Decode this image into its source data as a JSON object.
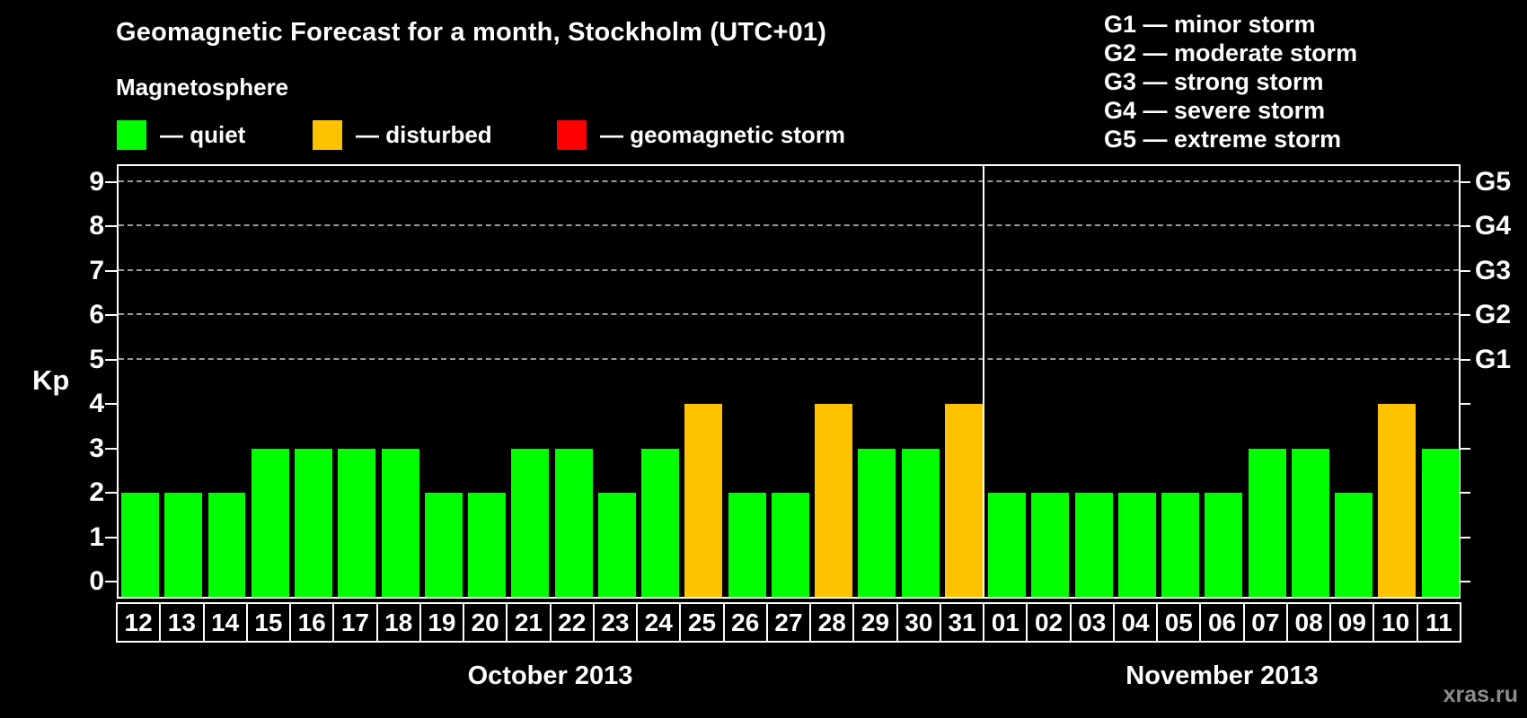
{
  "page": {
    "background": "#000000"
  },
  "header": {
    "title": "Geomagnetic Forecast for a month, Stockholm (UTC+01)",
    "subtitle": "Magnetosphere",
    "legend": [
      {
        "name": "quiet",
        "label": "— quiet",
        "color": "#00FF00"
      },
      {
        "name": "disturbed",
        "label": "— disturbed",
        "color": "#FFC200"
      },
      {
        "name": "storm",
        "label": "— geomagnetic storm",
        "color": "#FF0000"
      }
    ],
    "g_scale_legend": [
      "G1 — minor storm",
      "G2 — moderate storm",
      "G3 — strong storm",
      "G4 — severe storm",
      "G5 — extreme storm"
    ]
  },
  "watermark": "xras.ru",
  "chart_data": {
    "type": "bar",
    "title": "Geomagnetic Forecast for a month, Stockholm (UTC+01)",
    "xlabel": "",
    "ylabel": "Kp",
    "ylim": [
      0,
      9
    ],
    "yticks": [
      0,
      1,
      2,
      3,
      4,
      5,
      6,
      7,
      8,
      9
    ],
    "grid_kp_levels": [
      5,
      6,
      7,
      8,
      9
    ],
    "grid_style": "dashed",
    "legend_position": "top-left",
    "right_axis": [
      {
        "label": "G1",
        "kp": 5
      },
      {
        "label": "G2",
        "kp": 6
      },
      {
        "label": "G3",
        "kp": 7
      },
      {
        "label": "G4",
        "kp": 8
      },
      {
        "label": "G5",
        "kp": 9
      }
    ],
    "series_colors": {
      "quiet": "#00FF00",
      "disturbed": "#FFC200",
      "storm": "#FF0000"
    },
    "months": [
      {
        "label": "October 2013",
        "days": [
          {
            "day": "12",
            "kp": 2,
            "status": "quiet"
          },
          {
            "day": "13",
            "kp": 2,
            "status": "quiet"
          },
          {
            "day": "14",
            "kp": 2,
            "status": "quiet"
          },
          {
            "day": "15",
            "kp": 3,
            "status": "quiet"
          },
          {
            "day": "16",
            "kp": 3,
            "status": "quiet"
          },
          {
            "day": "17",
            "kp": 3,
            "status": "quiet"
          },
          {
            "day": "18",
            "kp": 3,
            "status": "quiet"
          },
          {
            "day": "19",
            "kp": 2,
            "status": "quiet"
          },
          {
            "day": "20",
            "kp": 2,
            "status": "quiet"
          },
          {
            "day": "21",
            "kp": 3,
            "status": "quiet"
          },
          {
            "day": "22",
            "kp": 3,
            "status": "quiet"
          },
          {
            "day": "23",
            "kp": 2,
            "status": "quiet"
          },
          {
            "day": "24",
            "kp": 3,
            "status": "quiet"
          },
          {
            "day": "25",
            "kp": 4,
            "status": "disturbed"
          },
          {
            "day": "26",
            "kp": 2,
            "status": "quiet"
          },
          {
            "day": "27",
            "kp": 2,
            "status": "quiet"
          },
          {
            "day": "28",
            "kp": 4,
            "status": "disturbed"
          },
          {
            "day": "29",
            "kp": 3,
            "status": "quiet"
          },
          {
            "day": "30",
            "kp": 3,
            "status": "quiet"
          },
          {
            "day": "31",
            "kp": 4,
            "status": "disturbed"
          }
        ]
      },
      {
        "label": "November 2013",
        "days": [
          {
            "day": "01",
            "kp": 2,
            "status": "quiet"
          },
          {
            "day": "02",
            "kp": 2,
            "status": "quiet"
          },
          {
            "day": "03",
            "kp": 2,
            "status": "quiet"
          },
          {
            "day": "04",
            "kp": 2,
            "status": "quiet"
          },
          {
            "day": "05",
            "kp": 2,
            "status": "quiet"
          },
          {
            "day": "06",
            "kp": 2,
            "status": "quiet"
          },
          {
            "day": "07",
            "kp": 3,
            "status": "quiet"
          },
          {
            "day": "08",
            "kp": 3,
            "status": "quiet"
          },
          {
            "day": "09",
            "kp": 2,
            "status": "quiet"
          },
          {
            "day": "10",
            "kp": 4,
            "status": "disturbed"
          },
          {
            "day": "11",
            "kp": 3,
            "status": "quiet"
          }
        ]
      }
    ]
  }
}
